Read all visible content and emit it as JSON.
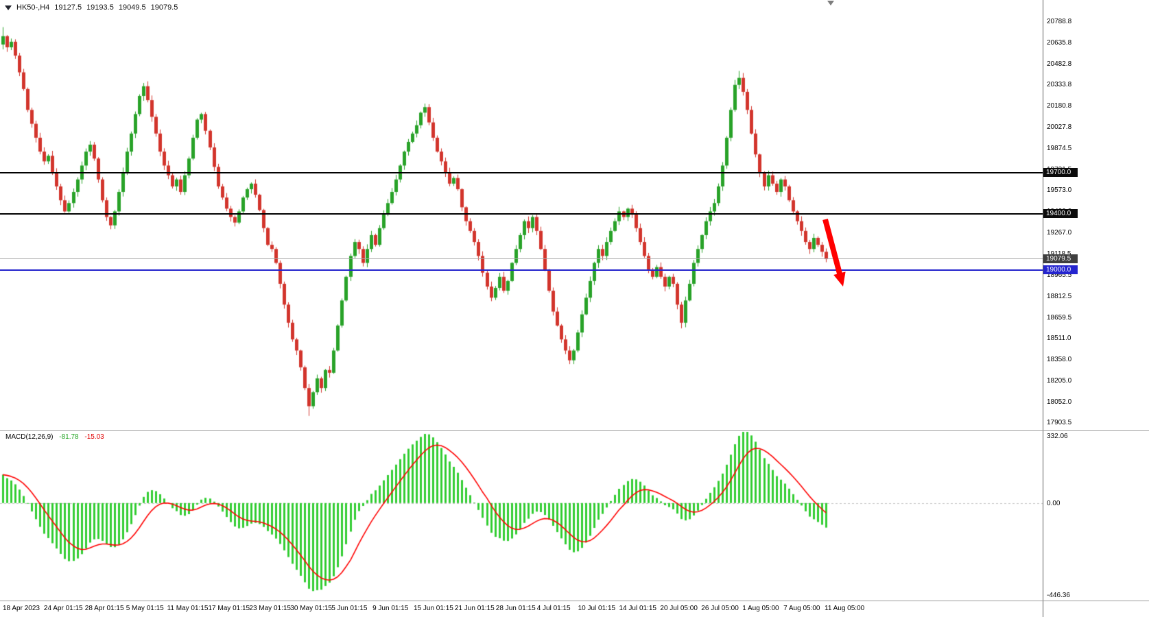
{
  "symbol_info": {
    "name": "HK50-,H4",
    "open": "19127.5",
    "high": "19193.5",
    "low": "19049.5",
    "close": "19079.5"
  },
  "price_axis": {
    "labels": [
      "20788.8",
      "20635.8",
      "20482.8",
      "20333.8",
      "20180.8",
      "20027.8",
      "19874.5",
      "19721.5",
      "19573.0",
      "19420.0",
      "19267.0",
      "19118.5",
      "18965.5",
      "18812.5",
      "18659.5",
      "18511.0",
      "18358.0",
      "18205.0",
      "18052.0",
      "17903.5"
    ]
  },
  "lines": [
    {
      "price": 19700.0,
      "label": "19700.0",
      "color": "#000000",
      "badge_bg": "#0b0b0b",
      "width": 2
    },
    {
      "price": 19400.0,
      "label": "19400.0",
      "color": "#000000",
      "badge_bg": "#0b0b0b",
      "width": 2
    },
    {
      "price": 19079.5,
      "label": "19079.5",
      "color": "#a8a8a8",
      "badge_bg": "#3f3f3f",
      "width": 1
    },
    {
      "price": 19000.0,
      "label": "19000.0",
      "color": "#2323cc",
      "badge_bg": "#2424cf",
      "width": 2
    }
  ],
  "macd": {
    "title": "MACD(12,26,9)",
    "value_main": "-81.78",
    "value_signal": "-15.03",
    "axis_max_label": "332.06",
    "axis_zero_label": "0.00",
    "axis_min_label": "-446.36",
    "histogram_color": "#32CD32",
    "signal_color": "#ff0000",
    "ylim": [
      -446.36,
      332.06
    ]
  },
  "time_axis": {
    "labels": [
      "18 Apr 2023",
      "24 Apr 01:15",
      "28 Apr 01:15",
      "5 May 01:15",
      "11 May 01:15",
      "17 May 01:15",
      "23 May 01:15",
      "30 May 01:15",
      "5 Jun 01:15",
      "9 Jun 01:15",
      "15 Jun 01:15",
      "21 Jun 01:15",
      "28 Jun 01:15",
      "4 Jul 01:15",
      "10 Jul 01:15",
      "14 Jul 01:15",
      "20 Jul 05:00",
      "26 Jul 05:00",
      "1 Aug 05:00",
      "7 Aug 05:00",
      "11 Aug 05:00"
    ]
  },
  "annotation": {
    "type": "arrow-down-right",
    "color": "#ff0000"
  },
  "chart_data": {
    "type": "candlestick",
    "symbol": "HK50-",
    "timeframe": "H4",
    "title": "HK50- H4 candlestick chart with MACD(12,26,9)",
    "grid": false,
    "ylim": [
      17850,
      20940
    ],
    "levels": [
      19700.0,
      19400.0,
      19079.5,
      19000.0
    ],
    "first_open": 20620,
    "closes": [
      20680,
      20600,
      20640,
      20540,
      20420,
      20300,
      20150,
      20050,
      19950,
      19850,
      19780,
      19820,
      19700,
      19600,
      19500,
      19420,
      19480,
      19560,
      19650,
      19750,
      19850,
      19900,
      19800,
      19650,
      19500,
      19380,
      19320,
      19420,
      19560,
      19700,
      19850,
      19980,
      20120,
      20250,
      20320,
      20220,
      20100,
      19980,
      19850,
      19750,
      19680,
      19600,
      19650,
      19560,
      19680,
      19800,
      19950,
      20080,
      20120,
      20000,
      19880,
      19740,
      19600,
      19520,
      19440,
      19380,
      19340,
      19420,
      19520,
      19580,
      19620,
      19540,
      19430,
      19300,
      19180,
      19150,
      19050,
      18900,
      18750,
      18620,
      18500,
      18420,
      18300,
      18150,
      18020,
      18120,
      18220,
      18150,
      18280,
      18260,
      18420,
      18600,
      18780,
      18950,
      19100,
      19200,
      19150,
      19050,
      19150,
      19250,
      19180,
      19300,
      19400,
      19480,
      19560,
      19650,
      19750,
      19850,
      19920,
      19980,
      20040,
      20130,
      20170,
      20060,
      19950,
      19850,
      19780,
      19700,
      19620,
      19660,
      19580,
      19450,
      19350,
      19280,
      19200,
      19100,
      18980,
      18880,
      18800,
      18870,
      18950,
      18850,
      18920,
      19050,
      19150,
      19250,
      19350,
      19300,
      19380,
      19280,
      19150,
      19000,
      18850,
      18700,
      18600,
      18500,
      18420,
      18350,
      18420,
      18550,
      18680,
      18800,
      18920,
      19050,
      19150,
      19100,
      19200,
      19280,
      19350,
      19420,
      19380,
      19440,
      19400,
      19300,
      19200,
      19100,
      19000,
      18950,
      19020,
      18950,
      18880,
      18950,
      18900,
      18750,
      18620,
      18780,
      18900,
      19050,
      19150,
      19250,
      19350,
      19420,
      19480,
      19600,
      19750,
      19950,
      20150,
      20330,
      20380,
      20280,
      20150,
      19980,
      19830,
      19700,
      19600,
      19680,
      19620,
      19560,
      19650,
      19600,
      19500,
      19420,
      19350,
      19280,
      19200,
      19150,
      19230,
      19180,
      19130,
      19079.5
    ],
    "wick_overrides": {
      "0": [
        20745,
        20585
      ],
      "74": [
        18180,
        17950
      ],
      "102": [
        20195,
        20100
      ],
      "164": [
        18770,
        18580
      ],
      "178": [
        20430,
        20300
      ]
    },
    "up_color": "#28a228",
    "down_color": "#d2342c"
  }
}
